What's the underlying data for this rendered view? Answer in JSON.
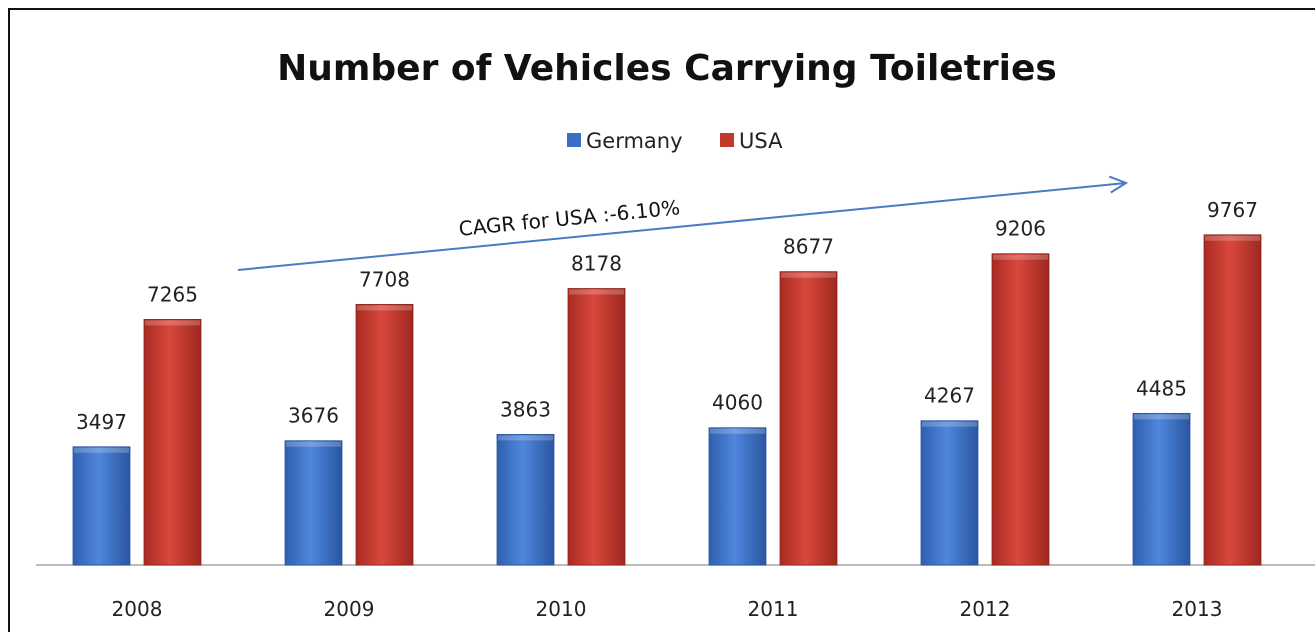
{
  "chart_data": {
    "type": "bar",
    "title": "Number of Vehicles Carrying Toiletries",
    "categories": [
      "2008",
      "2009",
      "2010",
      "2011",
      "2012",
      "2013"
    ],
    "series": [
      {
        "name": "Germany",
        "values": [
          3497,
          3676,
          3863,
          4060,
          4267,
          4485
        ],
        "color": "#3a6fc4"
      },
      {
        "name": "USA",
        "values": [
          7265,
          7708,
          8178,
          8677,
          9206,
          9767
        ],
        "color": "#c0392b"
      }
    ],
    "ylim": [
      0,
      10500
    ],
    "grid": false,
    "legend_position": "top-center",
    "annotations": [
      {
        "text": "CAGR for USA :-6.10%",
        "kind": "arrow"
      }
    ]
  }
}
